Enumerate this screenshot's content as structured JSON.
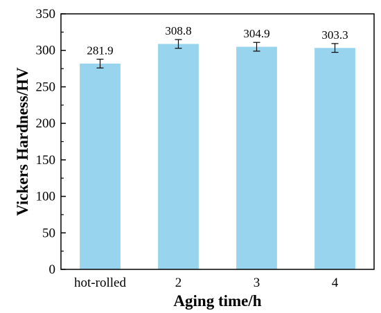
{
  "chart_data": {
    "type": "bar",
    "categories": [
      "hot-rolled",
      "2",
      "3",
      "4"
    ],
    "values": [
      281.9,
      308.8,
      304.9,
      303.3
    ],
    "errors": [
      6,
      6,
      6,
      6
    ],
    "data_labels": [
      "281.9",
      "308.8",
      "304.9",
      "303.3"
    ],
    "title": "",
    "xlabel": "Aging time/h",
    "ylabel": "Vickers Hardness/HV",
    "ylim": [
      0,
      350
    ],
    "yticks": [
      0,
      50,
      100,
      150,
      200,
      250,
      300,
      350
    ],
    "grid": false,
    "legend": "none",
    "colors": {
      "bar": "#98d4ee",
      "axis": "#000000"
    }
  }
}
